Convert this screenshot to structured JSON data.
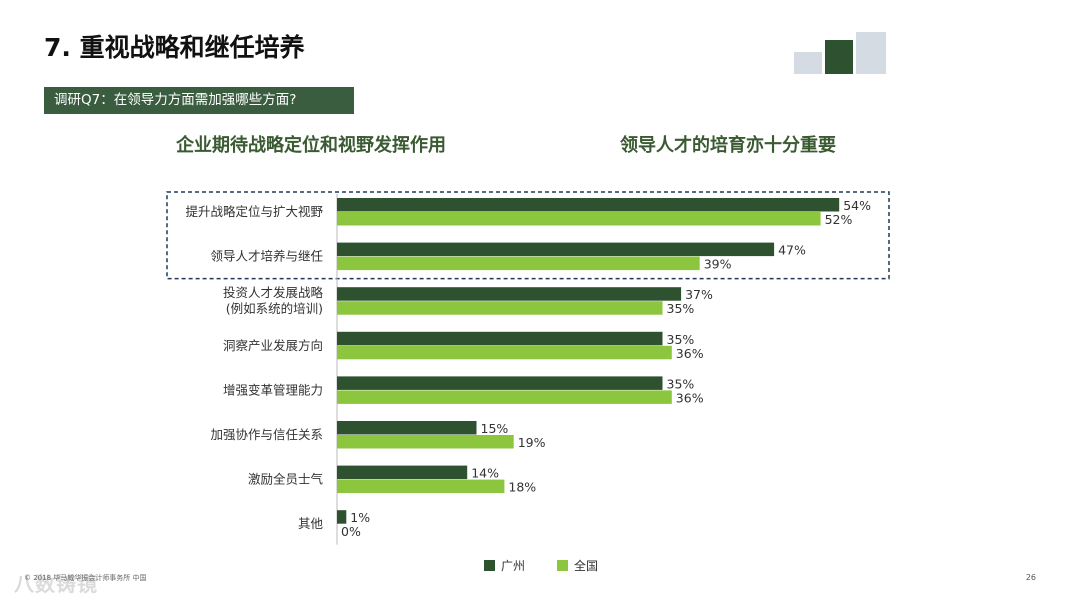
{
  "page": {
    "title": "7. 重视战略和继任培养",
    "question": "调研Q7：在领导力方面需加强哪些方面?",
    "subtitle_left": "企业期待战略定位和视野发挥作用",
    "subtitle_right": "领导人才的培育亦十分重要",
    "footnote": "© 2018 毕马威华振会计师事务所 中国",
    "watermark": "八数铸镜",
    "page_number": "26"
  },
  "colors": {
    "guangzhou": "#2e5230",
    "national": "#8cc63f",
    "title_green": "#3a5a32",
    "question_bg": "#3a5c3f",
    "highlight_border": "#1f3a5a"
  },
  "chart_data": {
    "type": "bar",
    "orientation": "horizontal",
    "categories": [
      [
        "提升战略定位与扩大视野"
      ],
      [
        "领导人才培养与继任"
      ],
      [
        "投资人才发展战略",
        "(例如系统的培训)"
      ],
      [
        "洞察产业发展方向"
      ],
      [
        "增强变革管理能力"
      ],
      [
        "加强协作与信任关系"
      ],
      [
        "激励全员士气"
      ],
      [
        "其他"
      ]
    ],
    "series": [
      {
        "name": "广州",
        "values": [
          54,
          47,
          37,
          35,
          35,
          15,
          14,
          1
        ]
      },
      {
        "name": "全国",
        "values": [
          52,
          39,
          35,
          36,
          36,
          19,
          18,
          0
        ]
      }
    ],
    "value_suffix": "%",
    "xlim": [
      0,
      60
    ],
    "highlighted_categories": [
      0,
      1
    ],
    "legend_position": "bottom"
  }
}
